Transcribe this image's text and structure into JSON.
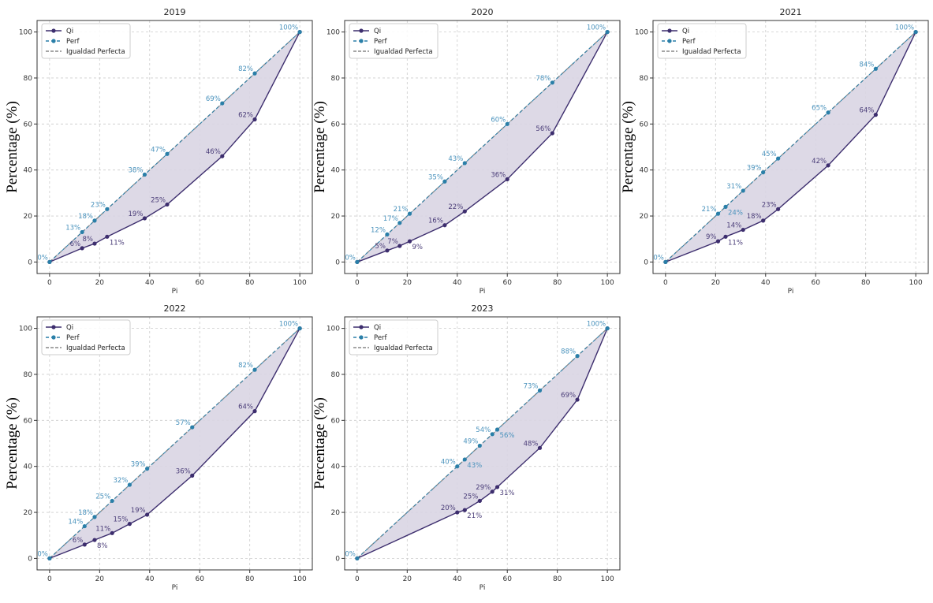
{
  "colors": {
    "qi": "#3d2e6e",
    "perf": "#2a7fa8",
    "perf_label": "#4b93bd",
    "qi_label": "#4a3d78",
    "fill": "#d9d5e3",
    "diag": "#888888"
  },
  "chart_data": [
    {
      "type": "line",
      "title": "2019",
      "xlabel": "Pi",
      "ylabel": "Percentage (%)",
      "xlim": [
        -5,
        105
      ],
      "ylim": [
        -5,
        105
      ],
      "grid": true,
      "legend": "top-left",
      "legend_entries": [
        "Qi",
        "Perf",
        "Igualdad Perfecta"
      ],
      "xticks": [
        0,
        20,
        40,
        60,
        80,
        100
      ],
      "yticks": [
        0,
        20,
        40,
        60,
        80,
        100
      ],
      "x": [
        0,
        13,
        18,
        23,
        38,
        47,
        69,
        82,
        100
      ],
      "series": [
        {
          "name": "Qi",
          "values": [
            0,
            6,
            8,
            11,
            19,
            25,
            46,
            62,
            100
          ]
        },
        {
          "name": "Perf",
          "values": [
            0,
            13,
            18,
            23,
            38,
            47,
            69,
            82,
            100
          ]
        }
      ]
    },
    {
      "type": "line",
      "title": "2020",
      "xlabel": "Pi",
      "ylabel": "Percentage (%)",
      "xlim": [
        -5,
        105
      ],
      "ylim": [
        -5,
        105
      ],
      "grid": true,
      "legend": "top-left",
      "legend_entries": [
        "Qi",
        "Perf",
        "Igualdad Perfecta"
      ],
      "xticks": [
        0,
        20,
        40,
        60,
        80,
        100
      ],
      "yticks": [
        0,
        20,
        40,
        60,
        80,
        100
      ],
      "x": [
        0,
        12,
        17,
        21,
        35,
        43,
        60,
        78,
        100
      ],
      "series": [
        {
          "name": "Qi",
          "values": [
            0,
            5,
            7,
            9,
            16,
            22,
            36,
            56,
            100
          ]
        },
        {
          "name": "Perf",
          "values": [
            0,
            12,
            17,
            21,
            35,
            43,
            60,
            78,
            100
          ]
        }
      ]
    },
    {
      "type": "line",
      "title": "2021",
      "xlabel": "Pi",
      "ylabel": "Percentage (%)",
      "xlim": [
        -5,
        105
      ],
      "ylim": [
        -5,
        105
      ],
      "grid": true,
      "legend": "top-left",
      "legend_entries": [
        "Qi",
        "Perf",
        "Igualdad Perfecta"
      ],
      "xticks": [
        0,
        20,
        40,
        60,
        80,
        100
      ],
      "yticks": [
        0,
        20,
        40,
        60,
        80,
        100
      ],
      "x": [
        0,
        21,
        24,
        31,
        39,
        45,
        65,
        84,
        100
      ],
      "series": [
        {
          "name": "Qi",
          "values": [
            0,
            9,
            11,
            14,
            18,
            23,
            42,
            64,
            100
          ]
        },
        {
          "name": "Perf",
          "values": [
            0,
            21,
            24,
            31,
            39,
            45,
            65,
            84,
            100
          ]
        }
      ]
    },
    {
      "type": "line",
      "title": "2022",
      "xlabel": "Pi",
      "ylabel": "Percentage (%)",
      "xlim": [
        -5,
        105
      ],
      "ylim": [
        -5,
        105
      ],
      "grid": true,
      "legend": "top-left",
      "legend_entries": [
        "Qi",
        "Perf",
        "Igualdad Perfecta"
      ],
      "xticks": [
        0,
        20,
        40,
        60,
        80,
        100
      ],
      "yticks": [
        0,
        20,
        40,
        60,
        80,
        100
      ],
      "x": [
        0,
        14,
        18,
        25,
        32,
        39,
        57,
        82,
        100
      ],
      "series": [
        {
          "name": "Qi",
          "values": [
            0,
            6,
            8,
            11,
            15,
            19,
            36,
            64,
            100
          ]
        },
        {
          "name": "Perf",
          "values": [
            0,
            14,
            18,
            25,
            32,
            39,
            57,
            82,
            100
          ]
        }
      ]
    },
    {
      "type": "line",
      "title": "2023",
      "xlabel": "Pi",
      "ylabel": "Percentage (%)",
      "xlim": [
        -5,
        105
      ],
      "ylim": [
        -5,
        105
      ],
      "grid": true,
      "legend": "top-left",
      "legend_entries": [
        "Qi",
        "Perf",
        "Igualdad Perfecta"
      ],
      "xticks": [
        0,
        20,
        40,
        60,
        80,
        100
      ],
      "yticks": [
        0,
        20,
        40,
        60,
        80,
        100
      ],
      "x": [
        0,
        40,
        43,
        49,
        54,
        56,
        73,
        88,
        100
      ],
      "series": [
        {
          "name": "Qi",
          "values": [
            0,
            20,
            21,
            25,
            29,
            31,
            48,
            69,
            100
          ]
        },
        {
          "name": "Perf",
          "values": [
            0,
            40,
            43,
            49,
            54,
            56,
            73,
            88,
            100
          ]
        }
      ]
    }
  ]
}
